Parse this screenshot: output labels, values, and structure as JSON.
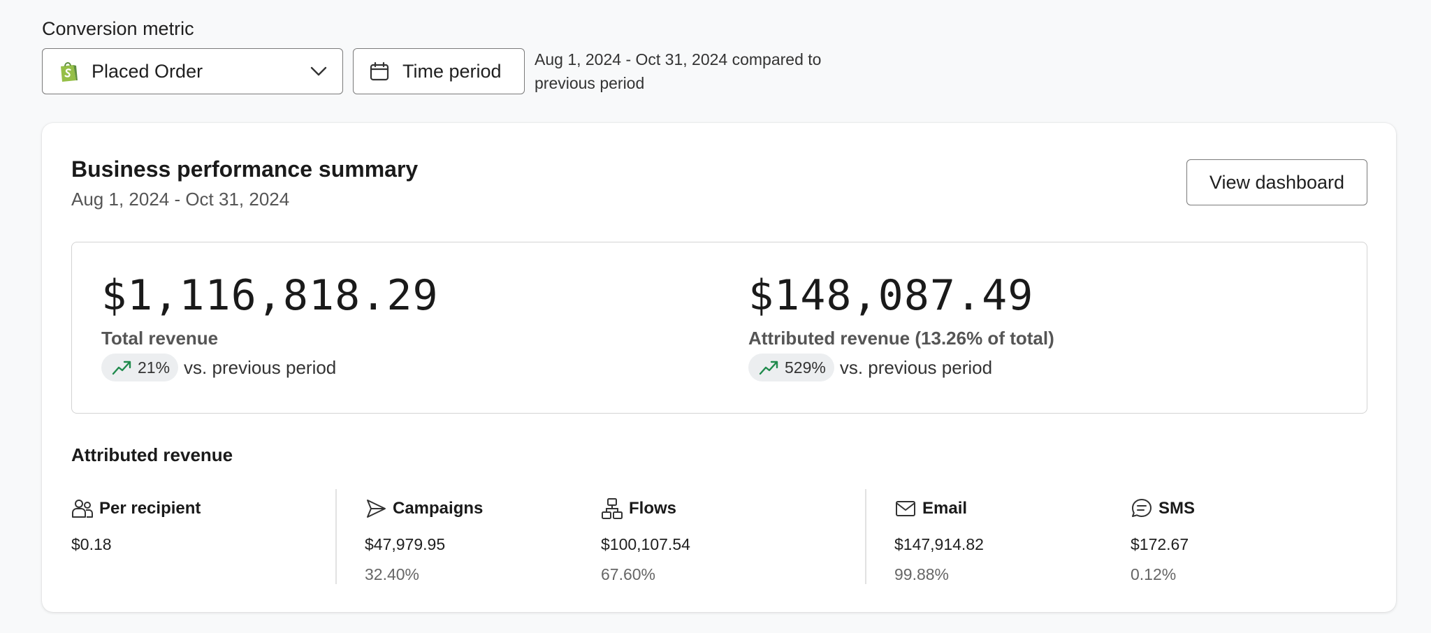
{
  "conversion_metric": {
    "label": "Conversion metric",
    "selected": "Placed Order",
    "icon": "shopify-bag-icon"
  },
  "time_period": {
    "button_label": "Time period",
    "description": "Aug 1, 2024 - Oct 31, 2024 compared to previous period"
  },
  "summary": {
    "title": "Business performance summary",
    "date_range": "Aug 1, 2024 - Oct 31, 2024",
    "view_button": "View dashboard",
    "total": {
      "value": "$1,116,818.29",
      "label": "Total revenue",
      "change": "21%",
      "change_suffix": "vs. previous period"
    },
    "attributed": {
      "value": "$148,087.49",
      "label": "Attributed revenue (13.26% of total)",
      "change": "529%",
      "change_suffix": "vs. previous period"
    }
  },
  "attributed_revenue": {
    "title": "Attributed revenue",
    "metrics": [
      {
        "name": "Per recipient",
        "value": "$0.18",
        "pct": "",
        "icon": "users-icon"
      },
      {
        "name": "Campaigns",
        "value": "$47,979.95",
        "pct": "32.40%",
        "icon": "send-icon"
      },
      {
        "name": "Flows",
        "value": "$100,107.54",
        "pct": "67.60%",
        "icon": "flow-icon"
      },
      {
        "name": "Email",
        "value": "$147,914.82",
        "pct": "99.88%",
        "icon": "mail-icon"
      },
      {
        "name": "SMS",
        "value": "$172.67",
        "pct": "0.12%",
        "icon": "message-icon"
      }
    ]
  },
  "colors": {
    "trend_up": "#1f8a4c",
    "shopify_green": "#95bf47",
    "background": "#f8f9fa"
  }
}
